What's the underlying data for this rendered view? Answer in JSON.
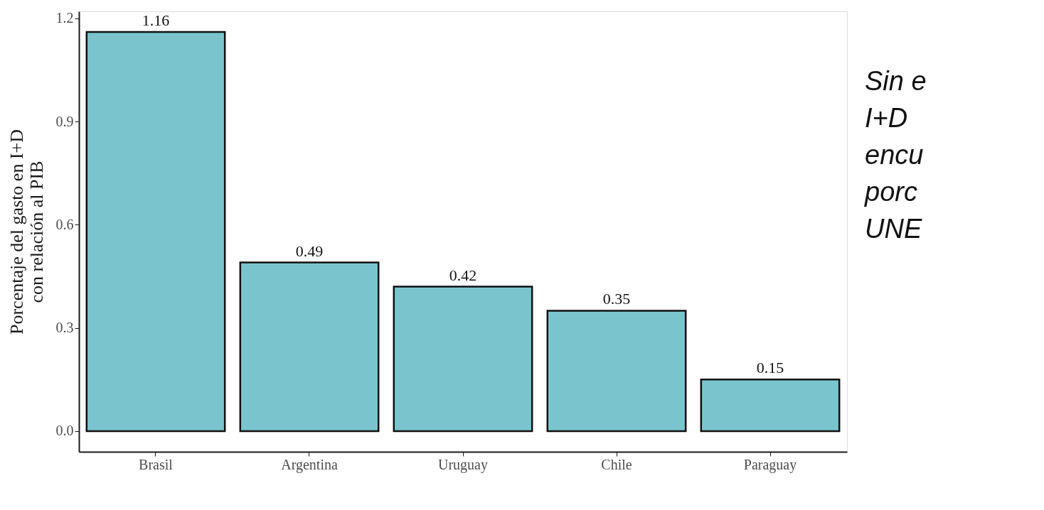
{
  "chart_data": {
    "type": "bar",
    "ylabel": "Porcentaje del gasto en I+D\ncon relación al PIB",
    "categories": [
      "Brasil",
      "Argentina",
      "Uruguay",
      "Chile",
      "Paraguay"
    ],
    "values": [
      1.16,
      0.49,
      0.42,
      0.35,
      0.15
    ],
    "color": "#7ac5cd",
    "ylim": [
      -0.06,
      1.22
    ],
    "yticks": [
      {
        "value": 0,
        "label": "0.0"
      },
      0.3,
      0.6,
      0.9,
      {
        "value": 1.2,
        "label": "1.2"
      }
    ],
    "grid": false,
    "data_labels": true,
    "annotations": [
      "Sin e",
      "I+D",
      "encu",
      "porc",
      "UNE"
    ]
  }
}
